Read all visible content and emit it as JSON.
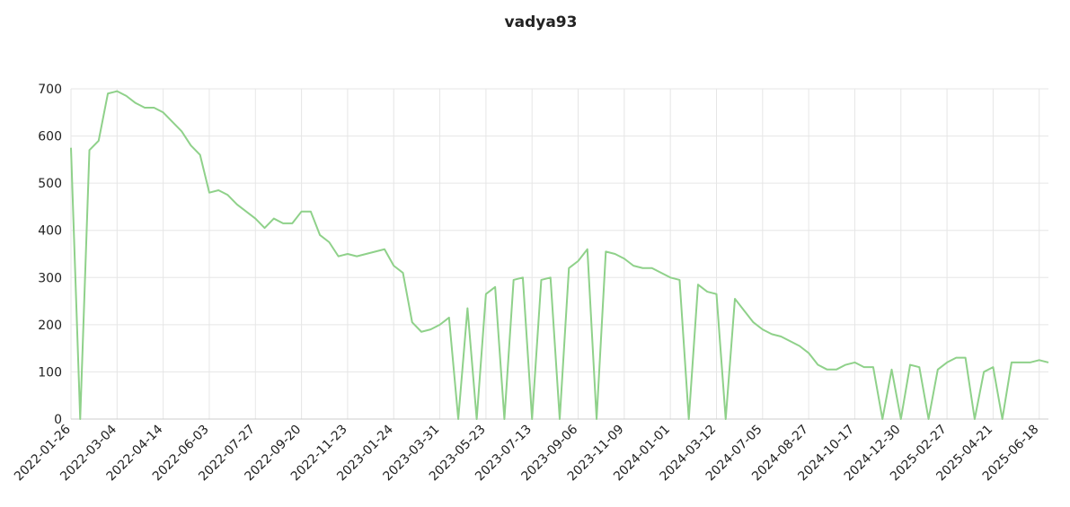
{
  "chart_data": {
    "type": "line",
    "title": "vadya93",
    "categories": [
      "2022-01-26",
      null,
      null,
      null,
      null,
      "2022-03-04",
      null,
      null,
      null,
      null,
      "2022-04-14",
      null,
      null,
      null,
      null,
      "2022-06-03",
      null,
      null,
      null,
      null,
      "2022-07-27",
      null,
      null,
      null,
      null,
      "2022-09-20",
      null,
      null,
      null,
      null,
      "2022-11-23",
      null,
      null,
      null,
      null,
      "2023-01-24",
      null,
      null,
      null,
      null,
      "2023-03-31",
      null,
      null,
      null,
      null,
      "2023-05-23",
      null,
      null,
      null,
      null,
      "2023-07-13",
      null,
      null,
      null,
      null,
      "2023-09-06",
      null,
      null,
      null,
      null,
      "2023-11-09",
      null,
      null,
      null,
      null,
      "2024-01-01",
      null,
      null,
      null,
      null,
      "2024-03-12",
      null,
      null,
      null,
      null,
      "2024-07-05",
      null,
      null,
      null,
      null,
      "2024-08-27",
      null,
      null,
      null,
      null,
      "2024-10-17",
      null,
      null,
      null,
      null,
      "2024-12-30",
      null,
      null,
      null,
      null,
      "2025-02-27",
      null,
      null,
      null,
      null,
      "2025-04-21",
      null,
      null,
      null,
      null,
      "2025-06-18",
      null
    ],
    "values": [
      575,
      0,
      570,
      590,
      690,
      695,
      685,
      670,
      660,
      660,
      650,
      630,
      610,
      580,
      560,
      480,
      485,
      475,
      455,
      440,
      425,
      405,
      425,
      415,
      415,
      440,
      440,
      390,
      375,
      345,
      350,
      345,
      350,
      355,
      360,
      325,
      310,
      205,
      185,
      190,
      200,
      215,
      0,
      235,
      0,
      265,
      280,
      0,
      295,
      300,
      0,
      295,
      300,
      0,
      320,
      335,
      360,
      0,
      355,
      350,
      340,
      325,
      320,
      320,
      310,
      300,
      295,
      0,
      285,
      270,
      265,
      0,
      255,
      230,
      205,
      190,
      180,
      175,
      165,
      155,
      140,
      115,
      105,
      105,
      115,
      120,
      110,
      110,
      0,
      105,
      0,
      115,
      110,
      0,
      105,
      120,
      130,
      130,
      0,
      100,
      110,
      0,
      120,
      120,
      120,
      125,
      120
    ],
    "color": "#8fd18a",
    "ylim": [
      0,
      700
    ],
    "yticks": [
      0,
      100,
      200,
      300,
      400,
      500,
      600,
      700
    ],
    "grid": true
  }
}
